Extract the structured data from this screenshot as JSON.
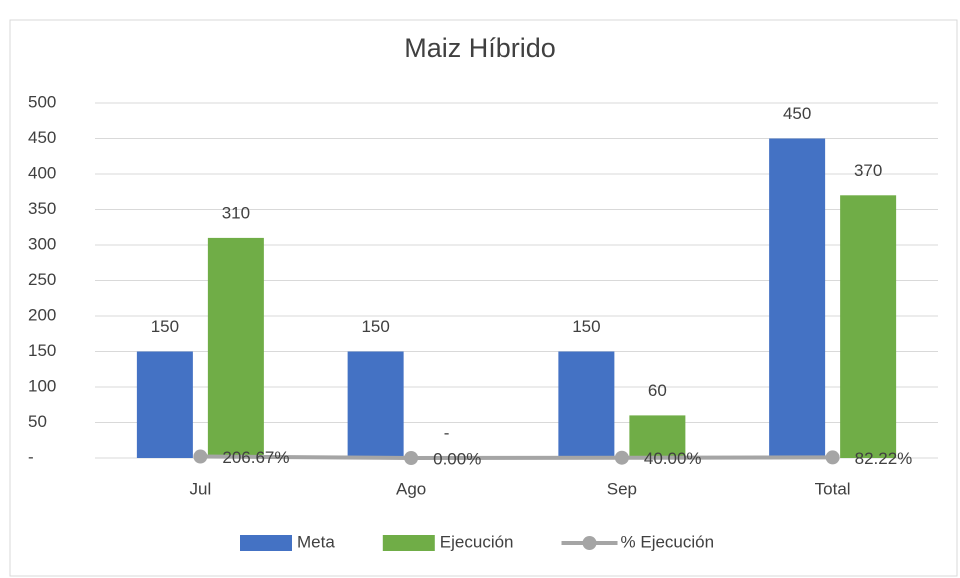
{
  "chart_data": {
    "type": "bar",
    "title": "Maiz Híbrido",
    "categories": [
      "Jul",
      "Ago",
      "Sep",
      "Total"
    ],
    "series": [
      {
        "name": "Meta",
        "color": "#4472c4",
        "values": [
          150,
          150,
          150,
          450
        ]
      },
      {
        "name": "Ejecución",
        "color": "#70ad47",
        "values": [
          310,
          0,
          60,
          370
        ],
        "value_labels": [
          "310",
          "-",
          "60",
          "370"
        ]
      },
      {
        "name": "% Ejecución",
        "type": "line",
        "color": "#a5a5a5",
        "values": [
          2.0667,
          0,
          0.4,
          0.8222
        ],
        "value_labels": [
          "206.67%",
          "0.00%",
          "40.00%",
          "82.22%"
        ]
      }
    ],
    "ylim": [
      0,
      500
    ],
    "yticks": [
      {
        "value": 0,
        "label": "-"
      },
      50,
      100,
      150,
      200,
      250,
      300,
      350,
      400,
      450,
      500
    ],
    "grid": true,
    "legend": "bottom"
  }
}
